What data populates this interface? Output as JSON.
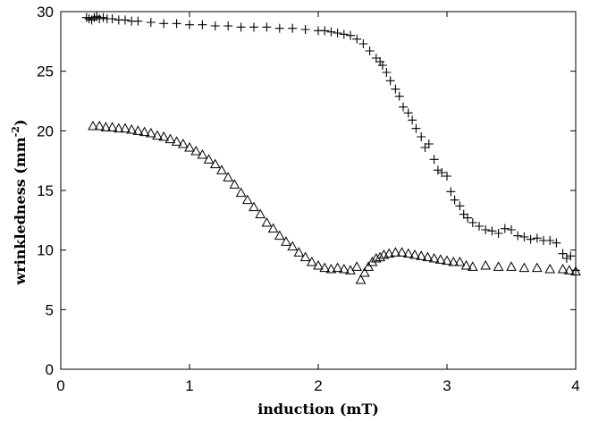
{
  "chart_data": {
    "type": "scatter",
    "title": "",
    "xlabel": "induction (mT)",
    "ylabel": "wrinkledness (mm",
    "ylabel_sup": "-2",
    "ylabel_close": ")",
    "xlim": [
      0,
      4
    ],
    "ylim": [
      0,
      30
    ],
    "x_ticks": [
      0,
      1,
      2,
      3,
      4
    ],
    "y_ticks": [
      0,
      5,
      10,
      15,
      20,
      25,
      30
    ],
    "grid": false,
    "legend": "none",
    "series": [
      {
        "marker": "plus",
        "x": [
          0.2,
          0.22,
          0.24,
          0.26,
          0.28,
          0.3,
          0.33,
          0.36,
          0.4,
          0.45,
          0.5,
          0.55,
          0.6,
          0.7,
          0.8,
          0.9,
          1.0,
          1.1,
          1.2,
          1.3,
          1.4,
          1.5,
          1.6,
          1.7,
          1.8,
          1.9,
          2.0,
          2.05,
          2.1,
          2.15,
          2.2,
          2.25,
          2.3,
          2.35,
          2.4,
          2.45,
          2.48,
          2.5,
          2.53,
          2.56,
          2.6,
          2.63,
          2.66,
          2.7,
          2.73,
          2.76,
          2.8,
          2.83,
          2.86,
          2.9,
          2.93,
          2.96,
          3.0,
          3.03,
          3.06,
          3.1,
          3.13,
          3.16,
          3.2,
          3.25,
          3.3,
          3.35,
          3.4,
          3.45,
          3.5,
          3.55,
          3.6,
          3.65,
          3.7,
          3.75,
          3.8,
          3.85,
          3.9,
          3.93,
          3.96,
          4.0
        ],
        "y": [
          29.5,
          29.4,
          29.3,
          29.5,
          29.6,
          29.4,
          29.5,
          29.4,
          29.4,
          29.3,
          29.3,
          29.2,
          29.2,
          29.1,
          29.0,
          29.0,
          28.9,
          28.9,
          28.8,
          28.8,
          28.7,
          28.7,
          28.7,
          28.6,
          28.6,
          28.5,
          28.4,
          28.4,
          28.3,
          28.2,
          28.1,
          28.0,
          27.7,
          27.3,
          26.7,
          26.1,
          25.8,
          25.5,
          24.9,
          24.2,
          23.5,
          22.9,
          22.0,
          21.5,
          20.9,
          20.2,
          19.5,
          18.6,
          18.9,
          17.6,
          16.7,
          16.5,
          16.2,
          14.9,
          14.2,
          13.7,
          13.0,
          12.7,
          12.3,
          12.0,
          11.7,
          11.6,
          11.4,
          11.8,
          11.7,
          11.2,
          11.1,
          10.9,
          11.0,
          10.8,
          10.8,
          10.6,
          9.7,
          9.3,
          9.5,
          8.3
        ]
      },
      {
        "marker": "triangle",
        "x": [
          0.25,
          0.3,
          0.35,
          0.4,
          0.45,
          0.5,
          0.55,
          0.6,
          0.65,
          0.7,
          0.75,
          0.8,
          0.85,
          0.9,
          0.95,
          1.0,
          1.05,
          1.1,
          1.15,
          1.2,
          1.25,
          1.3,
          1.35,
          1.4,
          1.45,
          1.5,
          1.55,
          1.6,
          1.65,
          1.7,
          1.75,
          1.8,
          1.85,
          1.9,
          1.95,
          2.0,
          2.05,
          2.1,
          2.15,
          2.2,
          2.25,
          2.3,
          2.33,
          2.36,
          2.39,
          2.42,
          2.45,
          2.48,
          2.51,
          2.55,
          2.6,
          2.65,
          2.7,
          2.75,
          2.8,
          2.85,
          2.9,
          2.95,
          3.0,
          3.05,
          3.1,
          3.15,
          3.2,
          3.3,
          3.4,
          3.5,
          3.6,
          3.7,
          3.8,
          3.9,
          3.95,
          4.0
        ],
        "y": [
          20.4,
          20.4,
          20.3,
          20.3,
          20.2,
          20.2,
          20.1,
          20.0,
          19.9,
          19.8,
          19.6,
          19.5,
          19.3,
          19.1,
          18.9,
          18.6,
          18.3,
          18.0,
          17.6,
          17.2,
          16.7,
          16.1,
          15.5,
          14.8,
          14.2,
          13.6,
          13.0,
          12.3,
          11.8,
          11.2,
          10.7,
          10.3,
          9.8,
          9.4,
          9.0,
          8.7,
          8.5,
          8.4,
          8.5,
          8.4,
          8.3,
          8.6,
          7.5,
          8.1,
          8.6,
          9.0,
          9.3,
          9.4,
          9.6,
          9.7,
          9.8,
          9.8,
          9.7,
          9.6,
          9.5,
          9.4,
          9.3,
          9.2,
          9.1,
          9.0,
          9.0,
          8.7,
          8.6,
          8.7,
          8.6,
          8.6,
          8.5,
          8.5,
          8.4,
          8.4,
          8.3,
          8.2
        ]
      }
    ]
  }
}
